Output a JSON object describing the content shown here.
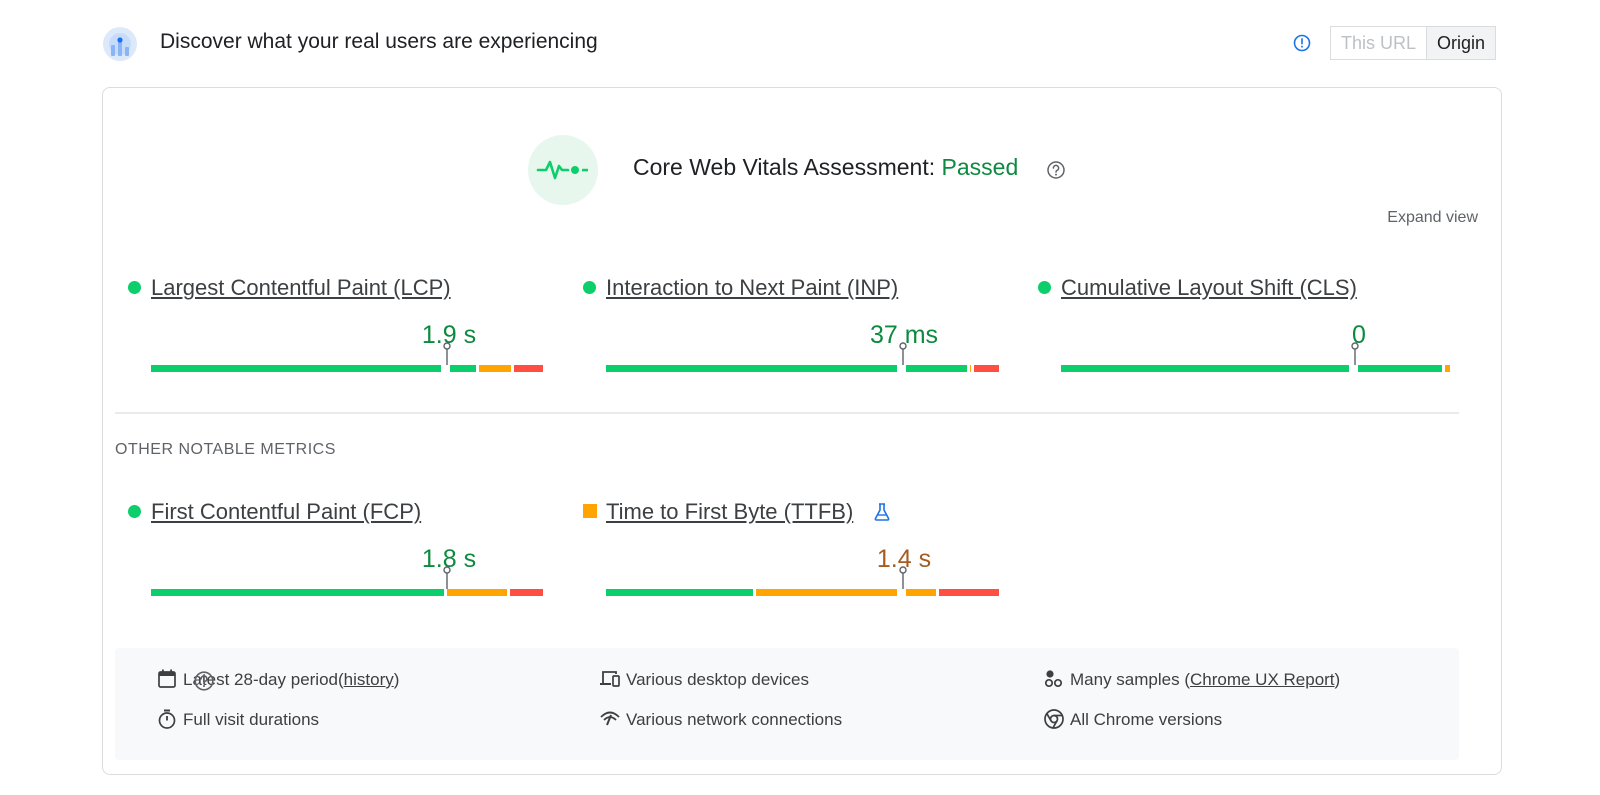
{
  "header": {
    "title": "Discover what your real users are experiencing",
    "toggle": {
      "this_url": "This URL",
      "origin": "Origin",
      "selected": "Origin"
    }
  },
  "assessment": {
    "label": "Core Web Vitals Assessment:",
    "status": "Passed",
    "expand_view": "Expand view"
  },
  "core_metrics": [
    {
      "name": "Largest Contentful Paint (LCP)",
      "value": "1.9 s",
      "rating": "good",
      "distribution": {
        "good": 0.83,
        "needs_improvement": 0.09,
        "poor": 0.08
      },
      "p75_position": 0.75
    },
    {
      "name": "Interaction to Next Paint (INP)",
      "value": "37 ms",
      "rating": "good",
      "distribution": {
        "good": 0.92,
        "needs_improvement": 0.01,
        "poor": 0.07
      },
      "p75_position": 0.75
    },
    {
      "name": "Cumulative Layout Shift (CLS)",
      "value": "0",
      "rating": "good",
      "distribution": {
        "good": 0.98,
        "needs_improvement": 0.02,
        "poor": 0.0
      },
      "p75_position": 0.75
    }
  ],
  "other_metrics_label": "OTHER NOTABLE METRICS",
  "other_metrics": [
    {
      "name": "First Contentful Paint (FCP)",
      "value": "1.8 s",
      "rating": "good",
      "distribution": {
        "good": 0.75,
        "needs_improvement": 0.16,
        "poor": 0.09
      },
      "p75_position": 0.75
    },
    {
      "name": "Time to First Byte (TTFB)",
      "value": "1.4 s",
      "rating": "needs-improvement",
      "experimental": true,
      "distribution": {
        "good": 0.38,
        "needs_improvement": 0.46,
        "poor": 0.16
      },
      "p75_position": 0.75
    }
  ],
  "footer": {
    "period": "Latest 28-day period",
    "history_link": "history",
    "devices": "Various desktop devices",
    "samples_prefix": "Many samples (",
    "samples_link": "Chrome UX Report",
    "samples_suffix": ")",
    "durations": "Full visit durations",
    "network": "Various network connections",
    "versions": "All Chrome versions"
  },
  "colors": {
    "good": "#0cce6b",
    "needs_improvement": "#ffa400",
    "poor": "#ff4e42",
    "good_text": "#0c8a3f",
    "ni_text": "#a55c1e"
  },
  "icons": {
    "logo": "crux-logo-icon",
    "info": "info-icon",
    "cwv": "pulse-icon",
    "help": "help-circle-icon",
    "lab": "flask-icon",
    "calendar": "calendar-icon",
    "devices": "devices-icon",
    "samples": "samples-icon",
    "timer": "stopwatch-icon",
    "network": "network-icon",
    "chrome": "chrome-icon"
  }
}
